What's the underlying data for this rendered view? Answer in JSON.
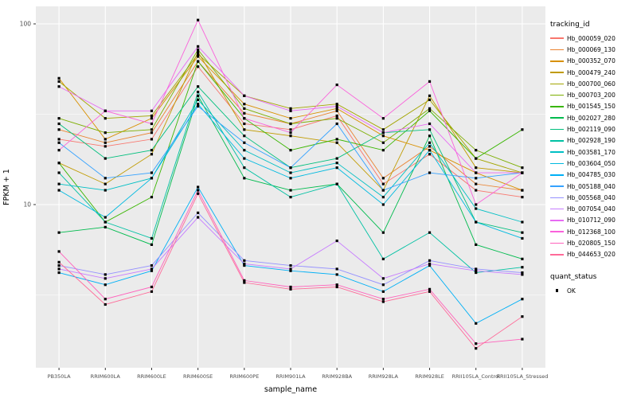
{
  "chart_data": {
    "type": "line",
    "title": "",
    "xlabel": "sample_name",
    "ylabel": "FPKM + 1",
    "y_scale": "log10",
    "ylim": [
      1.25,
      125
    ],
    "y_major_ticks": [
      10,
      100
    ],
    "y_major_tick_labels": [
      "10",
      "100"
    ],
    "y_minor_ticks": [
      3.162,
      31.62
    ],
    "grid": true,
    "panel_bg": "#EBEBEB",
    "grid_color": "#FFFFFF",
    "point_color": "#000000",
    "point_shape": "square",
    "legend_position": "right",
    "legend_title": "tracking_id",
    "legend2_title": "quant_status",
    "legend2_items": [
      "OK"
    ],
    "categories": [
      "PB350LA",
      "RRIM600LA",
      "RRIM600LE",
      "RRIM600SE",
      "RRIM600PE",
      "RRIM901LA",
      "RRIM928BA",
      "RRIM928LA",
      "RRIM928LE",
      "RRII105LA_Control",
      "RRII105LA_Stressed"
    ],
    "series": [
      {
        "name": "Hb_000059_020",
        "color": "#F8766D",
        "values": [
          23,
          21,
          23,
          58,
          28,
          26,
          31,
          13,
          19,
          12,
          11
        ]
      },
      {
        "name": "Hb_000069_130",
        "color": "#EA8331",
        "values": [
          26,
          22,
          25,
          62,
          32,
          28,
          33,
          14,
          21,
          13,
          12
        ]
      },
      {
        "name": "Hb_000352_070",
        "color": "#D89000",
        "values": [
          50,
          23,
          30,
          66,
          36,
          30,
          34,
          24,
          20,
          15,
          12
        ]
      },
      {
        "name": "Hb_000479_240",
        "color": "#C09B00",
        "values": [
          17,
          13,
          19,
          70,
          26,
          24,
          22,
          12,
          40,
          16,
          15
        ]
      },
      {
        "name": "Hb_000700_060",
        "color": "#A3A500",
        "values": [
          48,
          30,
          31,
          68,
          40,
          34,
          36,
          26,
          38,
          18,
          15
        ]
      },
      {
        "name": "Hb_000703_200",
        "color": "#7CAE00",
        "values": [
          30,
          25,
          26,
          72,
          34,
          28,
          30,
          22,
          34,
          20,
          16
        ]
      },
      {
        "name": "Hb_001545_150",
        "color": "#39B600",
        "values": [
          17,
          8,
          11,
          62,
          30,
          20,
          23,
          20,
          33,
          18,
          26
        ]
      },
      {
        "name": "Hb_002027_280",
        "color": "#00BB4E",
        "values": [
          7,
          7.5,
          6,
          40,
          14,
          12,
          13,
          7,
          24,
          6,
          5
        ]
      },
      {
        "name": "Hb_002119_090",
        "color": "#00BF7D",
        "values": [
          28,
          18,
          20,
          45,
          24,
          16,
          18,
          25,
          26,
          8,
          7
        ]
      },
      {
        "name": "Hb_002928_190",
        "color": "#00C1A3",
        "values": [
          15,
          8,
          6.5,
          42,
          16,
          11,
          13,
          5,
          7,
          4.2,
          4.5
        ]
      },
      {
        "name": "Hb_003581_170",
        "color": "#00BFC4",
        "values": [
          13,
          12,
          14,
          38,
          20,
          15,
          17,
          11,
          22,
          9.5,
          8
        ]
      },
      {
        "name": "Hb_003604_050",
        "color": "#00BAE0",
        "values": [
          12,
          8.5,
          14,
          36,
          18,
          14,
          16,
          10,
          20,
          8,
          6.5
        ]
      },
      {
        "name": "Hb_004785_030",
        "color": "#00B0F6",
        "values": [
          4.2,
          3.6,
          4.3,
          12.5,
          4.6,
          4.3,
          4.1,
          3.3,
          4.6,
          2.2,
          3.0
        ]
      },
      {
        "name": "Hb_005188_040",
        "color": "#35A2FF",
        "values": [
          22,
          14,
          15,
          35,
          22,
          16,
          28,
          12,
          15,
          14,
          15
        ]
      },
      {
        "name": "Hb_005568_040",
        "color": "#9590FF",
        "values": [
          4.6,
          4.1,
          4.6,
          9,
          4.9,
          4.6,
          4.4,
          3.6,
          4.9,
          4.4,
          4.2
        ]
      },
      {
        "name": "Hb_007054_040",
        "color": "#C77CFF",
        "values": [
          4.4,
          3.9,
          4.4,
          8.5,
          4.7,
          4.4,
          6.3,
          3.9,
          4.7,
          4.3,
          4.1
        ]
      },
      {
        "name": "Hb_010712_090",
        "color": "#E76BF3",
        "values": [
          45,
          33,
          33,
          75,
          40,
          33,
          35,
          25,
          28,
          15,
          15
        ]
      },
      {
        "name": "Hb_012368_100",
        "color": "#FA62DB",
        "values": [
          20,
          33,
          28,
          105,
          30,
          25,
          46,
          30,
          48,
          10,
          15
        ]
      },
      {
        "name": "Hb_020805_150",
        "color": "#FF62BC",
        "values": [
          5.5,
          3.0,
          3.5,
          12,
          3.8,
          3.5,
          3.6,
          3.0,
          3.4,
          1.7,
          1.8
        ]
      },
      {
        "name": "Hb_044653_020",
        "color": "#FF6A98",
        "values": [
          4.8,
          2.8,
          3.3,
          11.5,
          3.7,
          3.4,
          3.5,
          2.9,
          3.3,
          1.6,
          2.4
        ]
      }
    ]
  }
}
